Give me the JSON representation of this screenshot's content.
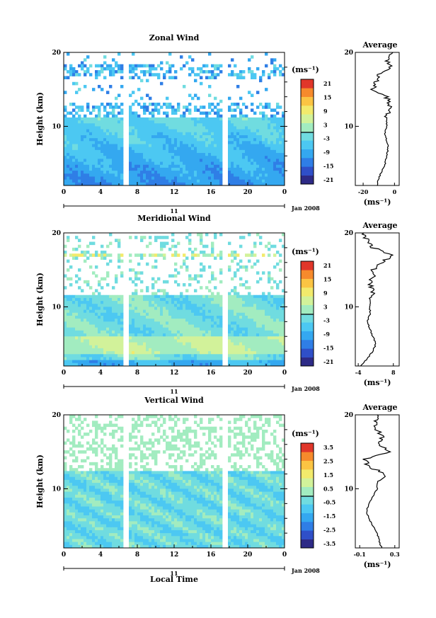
{
  "figure": {
    "xlabel": "Local Time",
    "date_label": "Jan 2008",
    "day_label": "11"
  },
  "chart_data": [
    {
      "type": "heatmap",
      "title": "Zonal Wind",
      "ylabel": "Height (km)",
      "xticks": [
        "0",
        "4",
        "8",
        "12",
        "16",
        "20",
        "0"
      ],
      "yticks": [
        "10",
        "20"
      ],
      "ylim": [
        2,
        20
      ],
      "xlim": [
        0,
        24
      ],
      "data_gaps_hours": [
        [
          6.5,
          7.2
        ],
        [
          17.3,
          17.8
        ]
      ],
      "unit": "(ms⁻¹)",
      "colorbar_ticks": [
        "21",
        "15",
        "9",
        "3",
        "-3",
        "-9",
        "-15",
        "-21"
      ],
      "colorbar_range": [
        -24,
        24
      ],
      "colors": [
        "#2d2a86",
        "#2f4fc8",
        "#2f7ee6",
        "#34a8f0",
        "#4cc8f2",
        "#70dce0",
        "#a2ecc0",
        "#d2f29a",
        "#f2ea6c",
        "#fbc443",
        "#f68a2c",
        "#e0362a"
      ],
      "profile": {
        "title": "Average",
        "xlabel": "(ms⁻¹)",
        "xticks": [
          "-20",
          "0"
        ],
        "yticks": [
          "10",
          "20"
        ],
        "xlim": [
          -25,
          3
        ],
        "height_km": [
          2,
          3,
          4,
          5,
          6,
          7,
          8,
          9,
          10,
          11,
          12,
          13,
          14,
          15,
          16,
          17,
          18,
          19,
          20
        ],
        "values": [
          -11,
          -10,
          -8,
          -6,
          -5,
          -4,
          -5,
          -6,
          -5,
          -5,
          -4,
          -3,
          -5,
          -14,
          -12,
          -10,
          -3,
          -5,
          -1
        ]
      }
    },
    {
      "type": "heatmap",
      "title": "Meridional Wind",
      "ylabel": "Height (km)",
      "xticks": [
        "0",
        "4",
        "8",
        "12",
        "16",
        "20",
        "0"
      ],
      "yticks": [
        "10",
        "20"
      ],
      "ylim": [
        2,
        20
      ],
      "xlim": [
        0,
        24
      ],
      "data_gaps_hours": [
        [
          6.5,
          7.2
        ],
        [
          17.3,
          17.8
        ]
      ],
      "unit": "(ms⁻¹)",
      "colorbar_ticks": [
        "21",
        "15",
        "9",
        "3",
        "-3",
        "-9",
        "-15",
        "-21"
      ],
      "colorbar_range": [
        -24,
        24
      ],
      "colors": [
        "#2d2a86",
        "#2f4fc8",
        "#2f7ee6",
        "#34a8f0",
        "#4cc8f2",
        "#70dce0",
        "#a2ecc0",
        "#d2f29a",
        "#f2ea6c",
        "#fbc443",
        "#f68a2c",
        "#e0362a"
      ],
      "profile": {
        "title": "Average",
        "xlabel": "(ms⁻¹)",
        "xticks": [
          "-4",
          "8"
        ],
        "yticks": [
          "10",
          "20"
        ],
        "xlim": [
          -5,
          10
        ],
        "height_km": [
          2,
          3,
          4,
          5,
          6,
          7,
          8,
          9,
          10,
          11,
          12,
          13,
          14,
          15,
          16,
          17,
          18,
          19,
          20
        ],
        "values": [
          -3,
          -1,
          1,
          2,
          1,
          0,
          -1,
          0,
          0,
          0,
          1,
          0,
          1,
          1,
          4,
          8,
          1,
          -1,
          -2
        ]
      }
    },
    {
      "type": "heatmap",
      "title": "Vertical Wind",
      "ylabel": "Height (km)",
      "xticks": [
        "0",
        "4",
        "8",
        "12",
        "16",
        "20",
        "0"
      ],
      "yticks": [
        "10",
        "20"
      ],
      "ylim": [
        2,
        20
      ],
      "xlim": [
        0,
        24
      ],
      "data_gaps_hours": [
        [
          6.5,
          7.2
        ],
        [
          17.3,
          17.8
        ]
      ],
      "unit": "(ms⁻¹)",
      "colorbar_ticks": [
        "3.5",
        "2.5",
        "1.5",
        "0.5",
        "-0.5",
        "-1.5",
        "-2.5",
        "-3.5"
      ],
      "colorbar_range": [
        -4,
        4
      ],
      "colors": [
        "#2d2a86",
        "#2f4fc8",
        "#2f7ee6",
        "#34a8f0",
        "#4cc8f2",
        "#70dce0",
        "#a2ecc0",
        "#d2f29a",
        "#f2ea6c",
        "#fbc443",
        "#f68a2c",
        "#e0362a"
      ],
      "profile": {
        "title": "Average",
        "xlabel": "(ms⁻¹)",
        "xticks": [
          "-0.1",
          "0.3"
        ],
        "yticks": [
          "10",
          "20"
        ],
        "xlim": [
          -0.15,
          0.35
        ],
        "height_km": [
          2,
          3,
          4,
          5,
          6,
          7,
          8,
          9,
          10,
          11,
          12,
          13,
          14,
          15,
          16,
          17,
          18,
          19,
          20
        ],
        "values": [
          0.15,
          0.12,
          0.1,
          0.05,
          0.0,
          -0.02,
          0.0,
          0.05,
          0.1,
          0.1,
          0.2,
          0.0,
          -0.05,
          0.25,
          0.1,
          0.15,
          0.1,
          0.08,
          0.1
        ]
      }
    }
  ]
}
